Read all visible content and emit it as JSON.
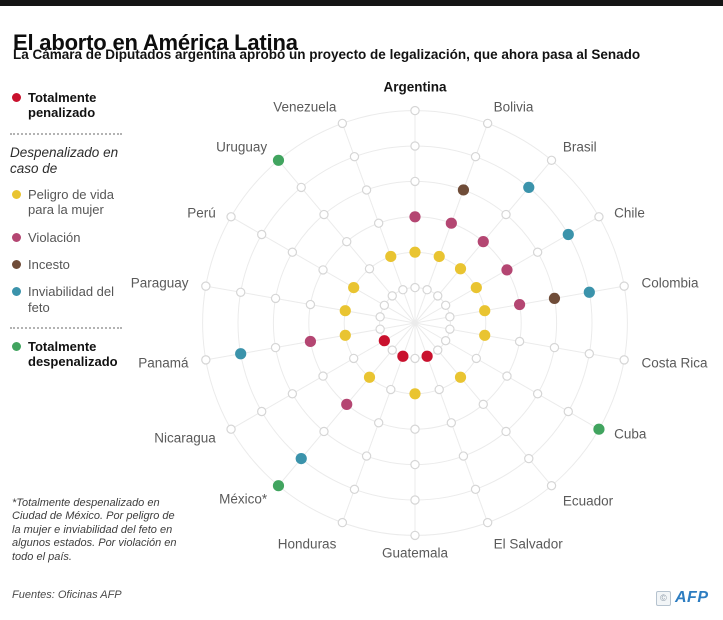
{
  "header": {
    "title": "El aborto en América Latina",
    "subtitle": "La Cámara de Diputados argentina aprobó un proyecto de legalización, que ahora pasa al Senado"
  },
  "chart_data": {
    "type": "radial-dot-matrix",
    "legend_group_label": "Despenalizado en caso de",
    "categories": [
      {
        "ring": 1,
        "label": "Totalmente penalizado",
        "color": "#c9112d"
      },
      {
        "ring": 2,
        "label": "Peligro de vida para la mujer",
        "color": "#e9c431"
      },
      {
        "ring": 3,
        "label": "Violación",
        "color": "#b44672"
      },
      {
        "ring": 4,
        "label": "Incesto",
        "color": "#6f4c38"
      },
      {
        "ring": 5,
        "label": "Inviabilidad del feto",
        "color": "#3b93ab"
      },
      {
        "ring": 6,
        "label": "Totalmente despenalizado",
        "color": "#41a45f"
      }
    ],
    "countries": [
      {
        "name": "Argentina",
        "bold": true,
        "rings": [
          2,
          3
        ]
      },
      {
        "name": "Bolivia",
        "rings": [
          2,
          3,
          4
        ]
      },
      {
        "name": "Brasil",
        "rings": [
          2,
          3,
          5
        ]
      },
      {
        "name": "Chile",
        "rings": [
          2,
          3,
          5
        ]
      },
      {
        "name": "Colombia",
        "rings": [
          2,
          3,
          4,
          5
        ]
      },
      {
        "name": "Costa Rica",
        "rings": [
          2
        ]
      },
      {
        "name": "Cuba",
        "rings": [
          6
        ]
      },
      {
        "name": "Ecuador",
        "rings": [
          2
        ]
      },
      {
        "name": "El Salvador",
        "rings": [
          1
        ]
      },
      {
        "name": "Guatemala",
        "rings": [
          2
        ]
      },
      {
        "name": "Honduras",
        "rings": [
          1
        ]
      },
      {
        "name": "México*",
        "rings": [
          2,
          3,
          5,
          6
        ]
      },
      {
        "name": "Nicaragua",
        "rings": [
          1
        ]
      },
      {
        "name": "Panamá",
        "rings": [
          2,
          3,
          5
        ]
      },
      {
        "name": "Paraguay",
        "rings": [
          2
        ]
      },
      {
        "name": "Perú",
        "rings": [
          2
        ]
      },
      {
        "name": "Uruguay",
        "rings": [
          6
        ]
      },
      {
        "name": "Venezuela",
        "rings": [
          2
        ]
      }
    ],
    "layout": {
      "rings_total": 6,
      "start_country_position": "top",
      "direction": "clockwise",
      "grid": "light concentric rings with open node circles at each intersection",
      "legend_position": "left"
    }
  },
  "footnote": {
    "text": "*Totalmente despenalizado en Ciudad de México. Por peligro de la mujer e inviabilidad del feto en algunos estados. Por violación en todo el país."
  },
  "source": {
    "text": "Fuentes: Oficinas AFP"
  },
  "branding": {
    "copyright": "©",
    "credit": "AFP"
  }
}
